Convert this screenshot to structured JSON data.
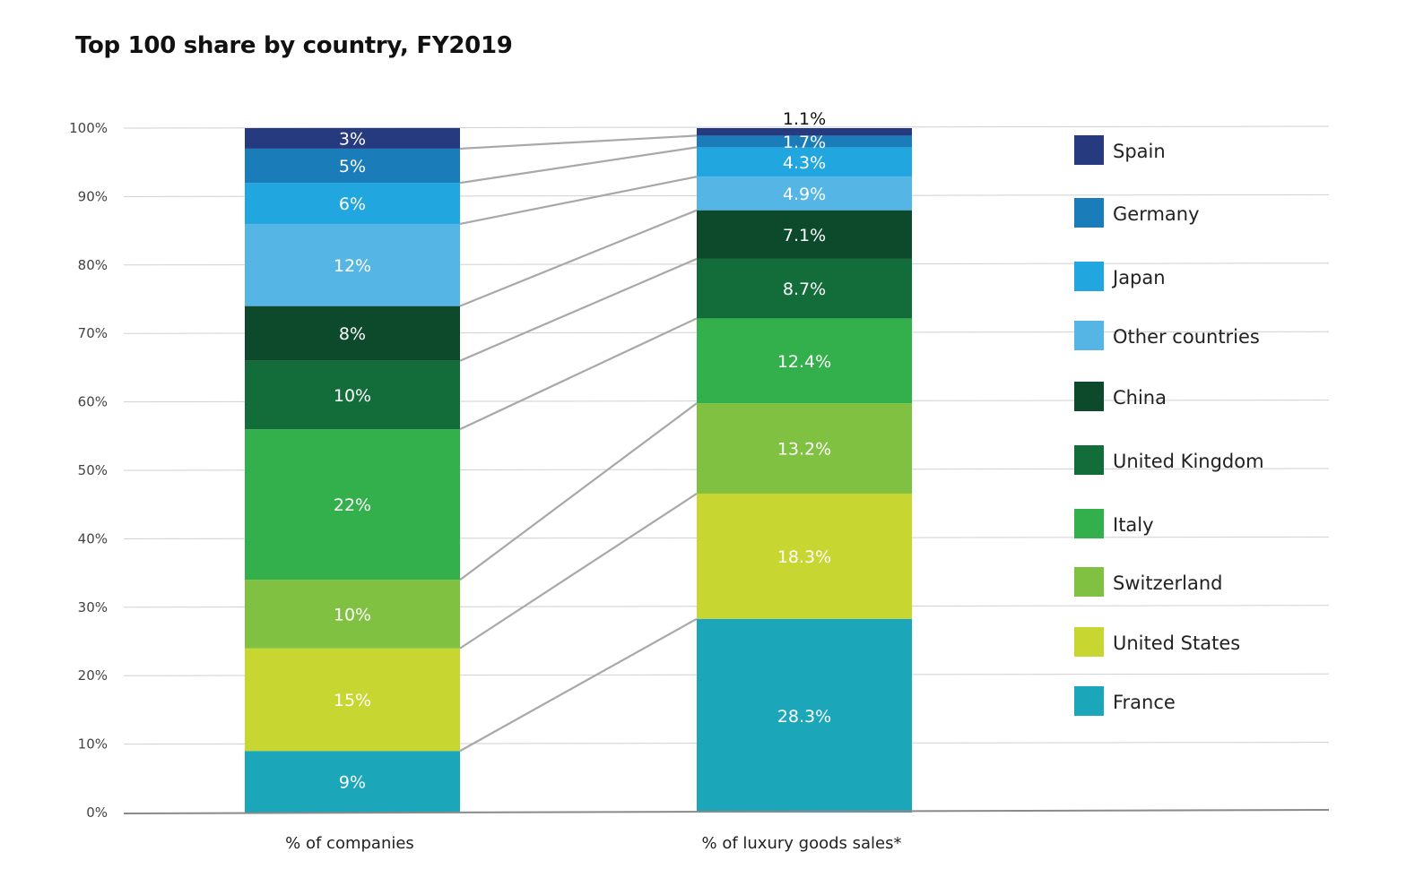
{
  "chart_data": {
    "type": "bar",
    "subtype": "stacked-100-with-connectors",
    "title": "Top 100 share by country, FY2019",
    "xlabel": "",
    "ylabel": "",
    "ylim": [
      0,
      100
    ],
    "grid": true,
    "legend_position": "right",
    "y_ticks": [
      "0%",
      "10%",
      "20%",
      "30%",
      "40%",
      "50%",
      "60%",
      "70%",
      "80%",
      "90%",
      "100%"
    ],
    "categories": [
      "% of companies",
      "% of luxury goods sales*"
    ],
    "series": [
      {
        "name": "France",
        "color": "#1BA6BA",
        "values": [
          9,
          28.3
        ],
        "labels": [
          "9%",
          "28.3%"
        ]
      },
      {
        "name": "United States",
        "color": "#C7D630",
        "values": [
          15,
          18.3
        ],
        "labels": [
          "15%",
          "18.3%"
        ]
      },
      {
        "name": "Switzerland",
        "color": "#80C142",
        "values": [
          10,
          13.2
        ],
        "labels": [
          "10%",
          "13.2%"
        ]
      },
      {
        "name": "Italy",
        "color": "#33B04B",
        "values": [
          22,
          12.4
        ],
        "labels": [
          "22%",
          "12.4%"
        ]
      },
      {
        "name": "United Kingdom",
        "color": "#136D3A",
        "values": [
          10,
          8.7
        ],
        "labels": [
          "10%",
          "8.7%"
        ]
      },
      {
        "name": "China",
        "color": "#0C4A2B",
        "values": [
          8,
          7.1
        ],
        "labels": [
          "8%",
          "7.1%"
        ]
      },
      {
        "name": "Other countries",
        "color": "#55B5E5",
        "values": [
          12,
          4.9
        ],
        "labels": [
          "12%",
          "4.9%"
        ]
      },
      {
        "name": "Japan",
        "color": "#22A6DF",
        "values": [
          6,
          4.3
        ],
        "labels": [
          "6%",
          "4.3%"
        ]
      },
      {
        "name": "Germany",
        "color": "#1A7CB9",
        "values": [
          5,
          1.7
        ],
        "labels": [
          "5%",
          "1.7%"
        ]
      },
      {
        "name": "Spain",
        "color": "#263B7F",
        "values": [
          3,
          1.1
        ],
        "labels": [
          "3%",
          "1.1%"
        ]
      }
    ],
    "legend_order": [
      "Spain",
      "Germany",
      "Japan",
      "Other countries",
      "China",
      "United Kingdom",
      "Italy",
      "Switzerland",
      "United States",
      "France"
    ]
  },
  "colors": {
    "grid": "#D0D0D0",
    "axis": "#8A8A8A",
    "connector": "#A8A8A8"
  }
}
